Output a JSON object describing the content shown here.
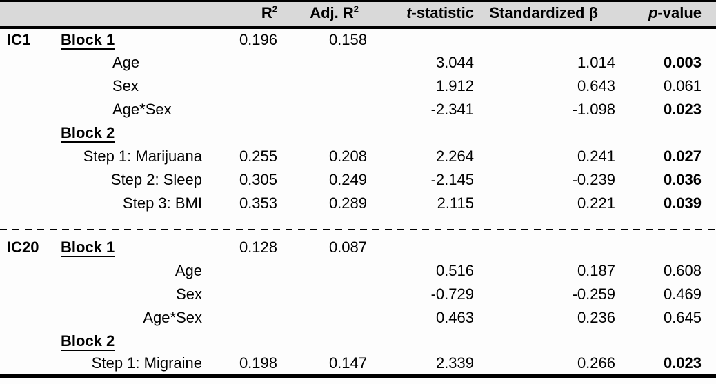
{
  "meta": {
    "header_bg": "#d9d9d9",
    "page_bg": "#fdfdfd",
    "rule_color": "#000000"
  },
  "header": {
    "ic": "",
    "predictor": "",
    "r2_base": "R",
    "r2_sup": "2",
    "adj_r2_base": "Adj. R",
    "adj_r2_sup": "2",
    "t_italic": "t",
    "t_rest": "-statistic",
    "beta": "Standardized β",
    "p_italic": "p",
    "p_rest": "-value"
  },
  "rows": [
    {
      "type": "block",
      "ic": "IC1",
      "label": "Block 1",
      "r2": "0.196",
      "adj_r2": "0.158",
      "t": "",
      "beta": "",
      "p": "",
      "p_bold": false
    },
    {
      "type": "predictor",
      "ic": "",
      "label": "Age",
      "label_align": "left",
      "r2": "",
      "adj_r2": "",
      "t": "3.044",
      "beta": "1.014",
      "p": "0.003",
      "p_bold": true
    },
    {
      "type": "predictor",
      "ic": "",
      "label": "Sex",
      "label_align": "left",
      "r2": "",
      "adj_r2": "",
      "t": "1.912",
      "beta": "0.643",
      "p": "0.061",
      "p_bold": false
    },
    {
      "type": "predictor",
      "ic": "",
      "label": "Age*Sex",
      "label_align": "left",
      "r2": "",
      "adj_r2": "",
      "t": "-2.341",
      "beta": "-1.098",
      "p": "0.023",
      "p_bold": true
    },
    {
      "type": "block",
      "ic": "",
      "label": "Block 2",
      "r2": "",
      "adj_r2": "",
      "t": "",
      "beta": "",
      "p": "",
      "p_bold": false
    },
    {
      "type": "step",
      "ic": "",
      "label": "Step 1: Marijuana",
      "label_align": "right",
      "r2": "0.255",
      "adj_r2": "0.208",
      "t": "2.264",
      "beta": "0.241",
      "p": "0.027",
      "p_bold": true
    },
    {
      "type": "step",
      "ic": "",
      "label": "Step 2: Sleep",
      "label_align": "right",
      "r2": "0.305",
      "adj_r2": "0.249",
      "t": "-2.145",
      "beta": "-0.239",
      "p": "0.036",
      "p_bold": true
    },
    {
      "type": "step",
      "ic": "",
      "label": "Step 3: BMI",
      "label_align": "right",
      "r2": "0.353",
      "adj_r2": "0.289",
      "t": "2.115",
      "beta": "0.221",
      "p": "0.039",
      "p_bold": true
    },
    {
      "type": "separator"
    },
    {
      "type": "block",
      "ic": "IC20",
      "label": "Block 1",
      "r2": "0.128",
      "adj_r2": "0.087",
      "t": "",
      "beta": "",
      "p": "",
      "p_bold": false
    },
    {
      "type": "predictor",
      "ic": "",
      "label": "Age",
      "label_align": "right",
      "r2": "",
      "adj_r2": "",
      "t": "0.516",
      "beta": "0.187",
      "p": "0.608",
      "p_bold": false
    },
    {
      "type": "predictor",
      "ic": "",
      "label": "Sex",
      "label_align": "right",
      "r2": "",
      "adj_r2": "",
      "t": "-0.729",
      "beta": "-0.259",
      "p": "0.469",
      "p_bold": false
    },
    {
      "type": "predictor",
      "ic": "",
      "label": "Age*Sex",
      "label_align": "right",
      "r2": "",
      "adj_r2": "",
      "t": "0.463",
      "beta": "0.236",
      "p": "0.645",
      "p_bold": false
    },
    {
      "type": "block",
      "ic": "",
      "label": "Block 2",
      "r2": "",
      "adj_r2": "",
      "t": "",
      "beta": "",
      "p": "",
      "p_bold": false
    },
    {
      "type": "step",
      "ic": "",
      "label": "Step 1: Migraine",
      "label_align": "right",
      "r2": "0.198",
      "adj_r2": "0.147",
      "t": "2.339",
      "beta": "0.266",
      "p": "0.023",
      "p_bold": true
    }
  ]
}
